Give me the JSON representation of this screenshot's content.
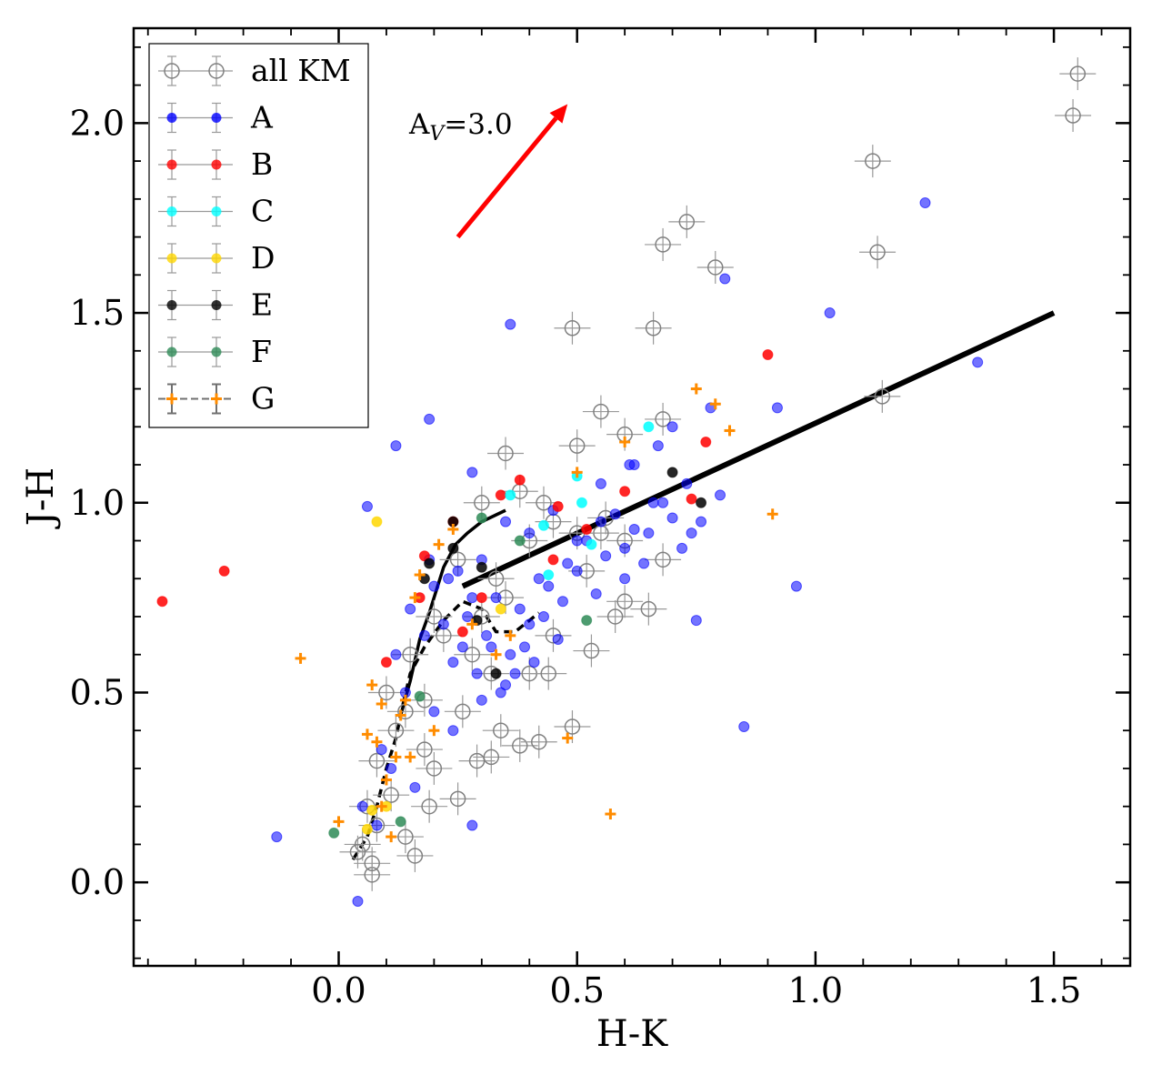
{
  "chart_data": {
    "type": "scatter",
    "xlabel": "H-K",
    "ylabel": "J-H",
    "xlim": [
      -0.43,
      1.66
    ],
    "ylim": [
      -0.22,
      2.25
    ],
    "xticks": [
      0.0,
      0.5,
      1.0,
      1.5
    ],
    "xtick_labels": [
      "0.0",
      "0.5",
      "1.0",
      "1.5"
    ],
    "yticks": [
      0.0,
      0.5,
      1.0,
      1.5,
      2.0
    ],
    "ytick_labels": [
      "0.0",
      "0.5",
      "1.0",
      "1.5",
      "2.0"
    ],
    "legend_position": "top-left",
    "annotation": {
      "text_main": "A",
      "text_sub": "V",
      "text_rest": "=3.0",
      "arrow_from": [
        0.25,
        1.7
      ],
      "arrow_to": [
        0.48,
        2.05
      ],
      "color": "#ff0000"
    },
    "series": [
      {
        "name": "all KM",
        "marker": "open-circle",
        "color": "#808080",
        "x": [
          1.55,
          1.54,
          1.12,
          1.13,
          0.73,
          0.68,
          0.79,
          0.49,
          0.66,
          0.35,
          0.55,
          0.6,
          0.68,
          0.3,
          0.38,
          0.43,
          0.5,
          0.45,
          0.55,
          0.6,
          0.4,
          0.33,
          0.25,
          0.35,
          0.52,
          0.2,
          0.3,
          0.45,
          0.58,
          0.15,
          0.22,
          0.28,
          0.32,
          0.4,
          0.1,
          0.14,
          0.18,
          0.26,
          0.34,
          0.44,
          0.49,
          0.29,
          0.32,
          0.38,
          0.42,
          0.08,
          0.12,
          0.18,
          0.2,
          0.25,
          0.06,
          0.08,
          0.11,
          0.14,
          0.19,
          0.05,
          0.07,
          0.16,
          0.04,
          0.07,
          1.14,
          0.68,
          0.6,
          0.65,
          0.5,
          0.56,
          0.53
        ],
        "y": [
          2.13,
          2.02,
          1.9,
          1.66,
          1.74,
          1.68,
          1.62,
          1.46,
          1.46,
          1.13,
          1.24,
          1.18,
          1.22,
          1.0,
          1.03,
          1.0,
          1.15,
          0.95,
          0.92,
          0.9,
          0.9,
          0.8,
          0.85,
          0.75,
          0.82,
          0.7,
          0.7,
          0.65,
          0.7,
          0.6,
          0.65,
          0.6,
          0.55,
          0.55,
          0.5,
          0.45,
          0.48,
          0.45,
          0.4,
          0.55,
          0.41,
          0.32,
          0.33,
          0.36,
          0.37,
          0.32,
          0.4,
          0.35,
          0.3,
          0.22,
          0.2,
          0.15,
          0.23,
          0.12,
          0.2,
          0.1,
          0.02,
          0.07,
          0.08,
          0.05,
          1.28,
          0.85,
          0.74,
          0.72,
          0.92,
          0.96,
          0.61
        ]
      },
      {
        "name": "A",
        "marker": "filled-circle",
        "color": "#0000ff",
        "x": [
          1.23,
          0.81,
          1.03,
          0.92,
          0.96,
          0.75,
          1.34,
          0.85,
          0.36,
          0.19,
          0.12,
          0.28,
          0.06,
          -0.13,
          0.28,
          0.04,
          0.35,
          0.4,
          0.45,
          0.5,
          0.55,
          0.6,
          0.65,
          0.7,
          0.3,
          0.25,
          0.2,
          0.42,
          0.48,
          0.52,
          0.58,
          0.62,
          0.66,
          0.72,
          0.76,
          0.8,
          0.33,
          0.27,
          0.22,
          0.38,
          0.44,
          0.5,
          0.56,
          0.6,
          0.64,
          0.36,
          0.31,
          0.26,
          0.4,
          0.47,
          0.15,
          0.18,
          0.24,
          0.29,
          0.34,
          0.39,
          0.43,
          0.54,
          0.68,
          0.73,
          0.12,
          0.14,
          0.2,
          0.24,
          0.3,
          0.35,
          0.09,
          0.11,
          0.16,
          0.05,
          0.08,
          0.61,
          0.7,
          0.78,
          0.46,
          0.41,
          0.37,
          0.32,
          0.28,
          0.23,
          0.19,
          0.55,
          0.62,
          0.67,
          0.74
        ],
        "y": [
          1.79,
          1.59,
          1.5,
          1.25,
          0.78,
          0.69,
          1.37,
          0.41,
          1.47,
          1.22,
          1.15,
          1.08,
          0.99,
          0.12,
          0.15,
          -0.05,
          0.95,
          0.92,
          0.98,
          0.9,
          0.95,
          0.88,
          0.92,
          0.96,
          0.85,
          0.82,
          0.78,
          0.8,
          0.84,
          0.9,
          0.97,
          0.93,
          1.0,
          0.88,
          0.95,
          1.02,
          0.75,
          0.7,
          0.68,
          0.72,
          0.78,
          0.82,
          0.86,
          0.8,
          0.84,
          0.6,
          0.65,
          0.62,
          0.68,
          0.74,
          0.72,
          0.65,
          0.58,
          0.55,
          0.5,
          0.62,
          0.7,
          0.76,
          1.0,
          1.05,
          0.6,
          0.5,
          0.45,
          0.4,
          0.48,
          0.52,
          0.35,
          0.3,
          0.25,
          0.2,
          0.15,
          1.1,
          1.2,
          1.25,
          0.64,
          0.58,
          0.55,
          0.62,
          0.75,
          0.8,
          0.85,
          1.05,
          1.1,
          1.15,
          0.92
        ]
      },
      {
        "name": "B",
        "marker": "filled-circle",
        "color": "#ff0000",
        "x": [
          -0.37,
          -0.24,
          0.9,
          0.77,
          0.74,
          0.38,
          0.34,
          0.24,
          0.18,
          0.1,
          0.46,
          0.52,
          0.6,
          0.3,
          0.26,
          0.17,
          0.45
        ],
        "y": [
          0.74,
          0.82,
          1.39,
          1.16,
          1.01,
          1.06,
          1.02,
          0.95,
          0.86,
          0.58,
          0.99,
          0.93,
          1.03,
          0.75,
          0.66,
          0.75,
          0.85
        ]
      },
      {
        "name": "C",
        "marker": "filled-circle",
        "color": "#00ffff",
        "x": [
          0.65,
          0.5,
          0.51,
          0.36,
          0.43,
          0.53,
          0.44
        ],
        "y": [
          1.2,
          1.07,
          1.0,
          1.02,
          0.94,
          0.89,
          0.81
        ]
      },
      {
        "name": "D",
        "marker": "filled-circle",
        "color": "#ffd700",
        "x": [
          0.08,
          0.34,
          0.1,
          0.07,
          0.06
        ],
        "y": [
          0.95,
          0.72,
          0.2,
          0.19,
          0.14
        ]
      },
      {
        "name": "E",
        "marker": "filled-circle",
        "color": "#000000",
        "x": [
          0.7,
          0.76,
          0.24,
          0.24,
          0.19,
          0.18,
          0.3,
          0.29,
          0.33
        ],
        "y": [
          1.08,
          1.0,
          0.95,
          0.88,
          0.84,
          0.8,
          0.83,
          0.69,
          0.55
        ]
      },
      {
        "name": "F",
        "marker": "filled-circle",
        "color": "#2e8b57",
        "x": [
          0.3,
          0.38,
          0.52,
          0.17,
          0.13,
          -0.01
        ],
        "y": [
          0.96,
          0.9,
          0.69,
          0.49,
          0.16,
          0.13
        ]
      },
      {
        "name": "G",
        "marker": "plus-errorbar",
        "color": "#ff8c00",
        "x": [
          0.57,
          0.91,
          -0.08,
          0.48,
          0.75,
          0.79,
          0.82,
          0.5,
          0.6,
          0.24,
          0.21,
          0.17,
          0.16,
          0.28,
          0.33,
          0.36,
          0.07,
          0.09,
          0.14,
          0.2,
          0.12,
          0.06,
          0.08,
          0.1,
          0.0,
          0.15,
          0.09,
          0.11,
          0.13
        ],
        "y": [
          0.18,
          0.97,
          0.59,
          0.38,
          1.3,
          1.26,
          1.19,
          1.08,
          1.16,
          0.93,
          0.89,
          0.81,
          0.75,
          0.68,
          0.6,
          0.65,
          0.52,
          0.47,
          0.48,
          0.4,
          0.33,
          0.39,
          0.37,
          0.27,
          0.16,
          0.33,
          0.2,
          0.12,
          0.44
        ]
      }
    ],
    "reference_lines": [
      {
        "style": "thick-solid",
        "color": "#000000",
        "x": [
          0.26,
          1.5
        ],
        "y": [
          0.78,
          1.5
        ]
      },
      {
        "style": "solid",
        "color": "#000000",
        "x": [
          0.13,
          0.15,
          0.17,
          0.19,
          0.22,
          0.245,
          0.27,
          0.3,
          0.35
        ],
        "y": [
          0.44,
          0.53,
          0.64,
          0.71,
          0.83,
          0.89,
          0.92,
          0.95,
          0.98
        ]
      },
      {
        "style": "dashed",
        "color": "#000000",
        "x": [
          0.03,
          0.06,
          0.08,
          0.1,
          0.12,
          0.135,
          0.15,
          0.18,
          0.22,
          0.26,
          0.3,
          0.33,
          0.37,
          0.42
        ],
        "y": [
          0.06,
          0.12,
          0.2,
          0.3,
          0.38,
          0.47,
          0.55,
          0.62,
          0.69,
          0.74,
          0.72,
          0.66,
          0.66,
          0.71
        ]
      }
    ]
  }
}
